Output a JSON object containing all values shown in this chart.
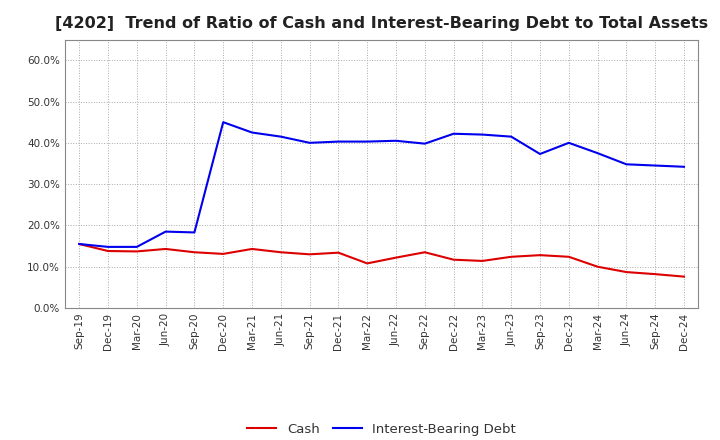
{
  "title": "[4202]  Trend of Ratio of Cash and Interest-Bearing Debt to Total Assets",
  "x_labels": [
    "Sep-19",
    "Dec-19",
    "Mar-20",
    "Jun-20",
    "Sep-20",
    "Dec-20",
    "Mar-21",
    "Jun-21",
    "Sep-21",
    "Dec-21",
    "Mar-22",
    "Jun-22",
    "Sep-22",
    "Dec-22",
    "Mar-23",
    "Jun-23",
    "Sep-23",
    "Dec-23",
    "Mar-24",
    "Jun-24",
    "Sep-24",
    "Dec-24"
  ],
  "cash": [
    0.155,
    0.138,
    0.137,
    0.143,
    0.135,
    0.131,
    0.143,
    0.135,
    0.13,
    0.134,
    0.108,
    0.122,
    0.135,
    0.117,
    0.114,
    0.124,
    0.128,
    0.124,
    0.1,
    0.087,
    0.082,
    0.076
  ],
  "interest_bearing_debt": [
    0.155,
    0.148,
    0.148,
    0.185,
    0.183,
    0.45,
    0.425,
    0.415,
    0.4,
    0.403,
    0.403,
    0.405,
    0.398,
    0.422,
    0.42,
    0.415,
    0.373,
    0.4,
    0.375,
    0.348,
    0.345,
    0.342
  ],
  "cash_color": "#dd0000",
  "debt_color": "#0000ee",
  "background_color": "#ffffff",
  "plot_bg_color": "#ffffff",
  "ylim": [
    0.0,
    0.65
  ],
  "yticks": [
    0.0,
    0.1,
    0.2,
    0.3,
    0.4,
    0.5,
    0.6
  ],
  "legend_cash": "Cash",
  "legend_debt": "Interest-Bearing Debt",
  "title_fontsize": 11.5,
  "tick_fontsize": 7.5,
  "legend_fontsize": 9.5,
  "grid_color": "#aaaaaa",
  "spine_color": "#888888"
}
